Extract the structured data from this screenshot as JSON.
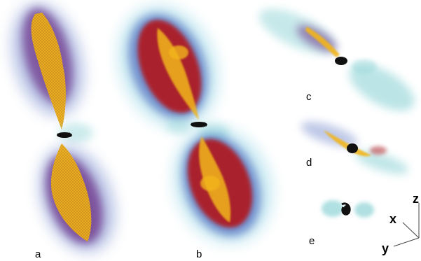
{
  "figure": {
    "panels": [
      {
        "id": "a",
        "label": "a"
      },
      {
        "id": "b",
        "label": "b"
      },
      {
        "id": "c",
        "label": "c"
      },
      {
        "id": "d",
        "label": "d"
      },
      {
        "id": "e",
        "label": "e"
      }
    ],
    "axes": {
      "x": "x",
      "y": "y",
      "z": "z"
    },
    "colors": {
      "background": "#ffffff",
      "core": "#f2b51c",
      "red": "#b0151b",
      "purple": "#6b2d86",
      "blue_halo": "#5e78c4",
      "cyan_halo": "#8fd3d6",
      "center": "#111111"
    }
  }
}
